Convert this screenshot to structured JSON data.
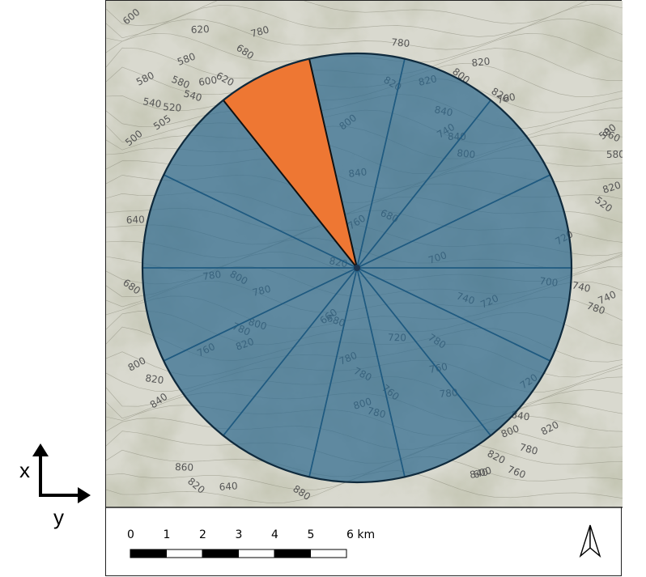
{
  "axes": {
    "x_label": "x",
    "y_label": "y"
  },
  "scale": {
    "ticks": [
      "0",
      "1",
      "2",
      "3",
      "4",
      "5",
      "6 km"
    ]
  },
  "north_arrow": {
    "icon": "north-arrow-icon"
  },
  "wind_rose": {
    "sector_count": 14,
    "highlighted_sector": 12,
    "fill_color": "#2f6a8e",
    "highlight_color": "#ee7733"
  },
  "contour_labels": [
    "600",
    "620",
    "680",
    "600",
    "620",
    "780",
    "580",
    "580",
    "540",
    "580",
    "540",
    "505",
    "520",
    "500",
    "640",
    "680",
    "780",
    "800",
    "780",
    "780",
    "820",
    "800",
    "760",
    "820",
    "760",
    "780",
    "500",
    "580",
    "520",
    "840",
    "820",
    "820",
    "680",
    "700",
    "740",
    "720",
    "840",
    "740",
    "800",
    "800",
    "840",
    "800",
    "820",
    "820",
    "760",
    "860",
    "820",
    "780",
    "740",
    "740",
    "720",
    "700",
    "660",
    "720",
    "760",
    "780",
    "780",
    "760",
    "780",
    "800",
    "680",
    "780",
    "780",
    "800",
    "820",
    "840",
    "860",
    "820",
    "640",
    "880",
    "840",
    "820",
    "600",
    "760",
    "800",
    "780",
    "820",
    "840",
    "720"
  ]
}
